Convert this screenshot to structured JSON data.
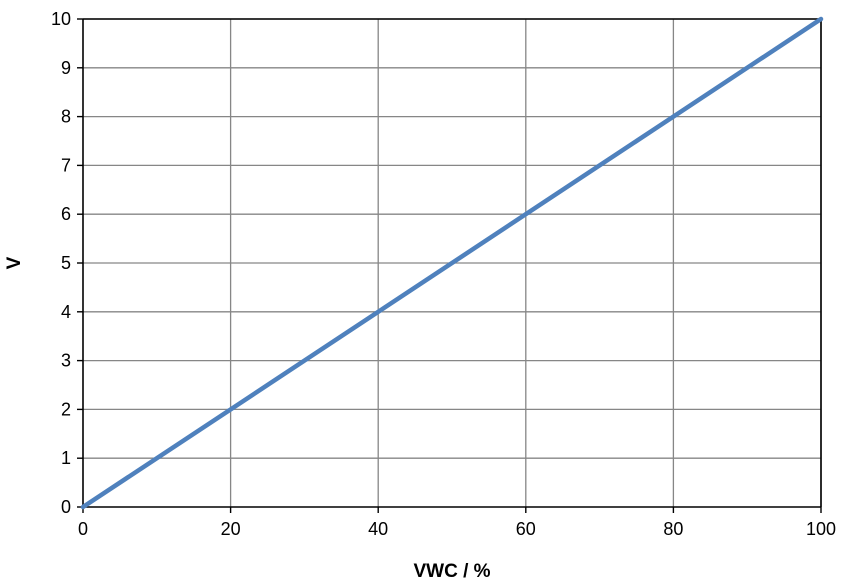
{
  "chart_data": {
    "type": "line",
    "title": "",
    "xlabel": "VWC / %",
    "ylabel": "V",
    "xlim": [
      0,
      100
    ],
    "ylim": [
      0,
      10
    ],
    "x_ticks": [
      0,
      20,
      40,
      60,
      80,
      100
    ],
    "y_ticks": [
      0,
      1,
      2,
      3,
      4,
      5,
      6,
      7,
      8,
      9,
      10
    ],
    "grid": true,
    "legend": "none",
    "series": [
      {
        "color": "#4F81BD",
        "x": [
          0,
          100
        ],
        "y": [
          0,
          10
        ]
      }
    ],
    "colors": {
      "grid": "#868686",
      "axis": "#000000",
      "line": "#4F81BD"
    }
  }
}
